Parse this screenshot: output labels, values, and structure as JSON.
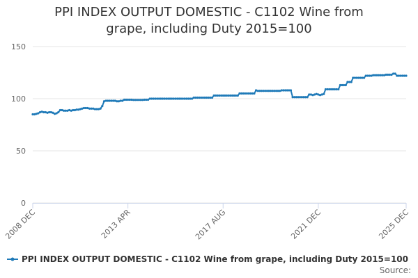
{
  "chart_data": {
    "type": "line",
    "title": "PPI INDEX OUTPUT DOMESTIC - C1102 Wine from grape, including Duty 2015=100",
    "source_label": "Source:",
    "categories": [
      "2008 DEC",
      null,
      null,
      null,
      null,
      null,
      null,
      null,
      null,
      null,
      null,
      null,
      null,
      null,
      null,
      null,
      null,
      null,
      null,
      null,
      null,
      null,
      null,
      null,
      null,
      null,
      null,
      null,
      null,
      null,
      null,
      null,
      null,
      null,
      null,
      null,
      null,
      null,
      null,
      null,
      null,
      null,
      null,
      null,
      null,
      null,
      null,
      null,
      null,
      null,
      null,
      null,
      "2013 APR",
      null,
      null,
      null,
      null,
      null,
      null,
      null,
      null,
      null,
      null,
      null,
      null,
      null,
      null,
      null,
      null,
      null,
      null,
      null,
      null,
      null,
      null,
      null,
      null,
      null,
      null,
      null,
      null,
      null,
      null,
      null,
      null,
      null,
      null,
      null,
      null,
      null,
      null,
      null,
      null,
      null,
      null,
      null,
      null,
      null,
      null,
      null,
      null,
      null,
      null,
      null,
      "2017 AUG",
      null,
      null,
      null,
      null,
      null,
      null,
      null,
      null,
      null,
      null,
      null,
      null,
      null,
      null,
      null,
      null,
      null,
      null,
      null,
      null,
      null,
      null,
      null,
      null,
      null,
      null,
      null,
      null,
      null,
      null,
      null,
      null,
      null,
      null,
      null,
      null,
      null,
      null,
      null,
      null,
      null,
      null,
      null,
      null,
      null,
      null,
      null,
      null,
      null,
      null,
      null,
      "2021 DEC",
      null,
      null,
      null,
      null,
      null,
      null,
      null,
      null,
      null,
      null,
      null,
      null,
      null,
      null,
      null,
      null,
      null,
      null,
      null,
      null,
      null,
      null,
      null,
      null,
      null,
      null,
      null,
      null,
      null,
      null,
      null,
      null,
      null,
      null,
      null,
      null,
      null,
      null,
      null,
      null,
      null,
      null,
      null,
      null,
      null,
      null,
      null,
      "2025 DEC"
    ],
    "series": [
      {
        "name": "PPI INDEX OUTPUT DOMESTIC - C1102 Wine from grape, including Duty 2015=100",
        "color": "#1f7ab8",
        "values": [
          85,
          85,
          85.5,
          86,
          87,
          87.5,
          87,
          87,
          86.5,
          87,
          87,
          86.5,
          85.5,
          86,
          87,
          89,
          89,
          88.5,
          88.5,
          88.5,
          89,
          88.5,
          89,
          89,
          89.5,
          89.5,
          90,
          90.5,
          91,
          91,
          91,
          90.5,
          90.5,
          90.5,
          90,
          90,
          90,
          90.5,
          93,
          97.5,
          98,
          98,
          98,
          98,
          98,
          98,
          97.5,
          97.5,
          98,
          98,
          99,
          99,
          99,
          99,
          99,
          98.8,
          98.8,
          98.8,
          98.8,
          98.8,
          98.8,
          99,
          99,
          99,
          100,
          100,
          100,
          100,
          100,
          100,
          100,
          100,
          100,
          100,
          100,
          100,
          100,
          100,
          100,
          100,
          100,
          100,
          100,
          100,
          100,
          100,
          100,
          100,
          101,
          101,
          101,
          101,
          101,
          101,
          101,
          101,
          101,
          101,
          101,
          103,
          103,
          103,
          103,
          103,
          103,
          103,
          103,
          103,
          103,
          103,
          103,
          103,
          103,
          105,
          105,
          105,
          105,
          105,
          105,
          105,
          105,
          105,
          108,
          107.5,
          107.5,
          107.5,
          107.5,
          107.5,
          107.5,
          107.5,
          107.5,
          107.5,
          107.5,
          107.5,
          107.5,
          107.5,
          108,
          108,
          108,
          108,
          108,
          108,
          101.5,
          101.5,
          101.5,
          101.5,
          101.5,
          101.5,
          101.5,
          101.5,
          101.5,
          104,
          104,
          103.5,
          104,
          104.5,
          104,
          103.5,
          104,
          104.5,
          109,
          109,
          109,
          109,
          109,
          109,
          109,
          109,
          113,
          113,
          113,
          113,
          116,
          116,
          116,
          120,
          120,
          120,
          120,
          120,
          120,
          120,
          122,
          122,
          122,
          122,
          122.5,
          122.5,
          122.5,
          122.5,
          122.5,
          122.5,
          122.5,
          123,
          123,
          123,
          123,
          124,
          124,
          122,
          122,
          122,
          122,
          122,
          122
        ]
      }
    ],
    "ylim": [
      0,
      150
    ],
    "yticks": [
      0,
      50,
      100,
      150
    ],
    "grid": true
  }
}
